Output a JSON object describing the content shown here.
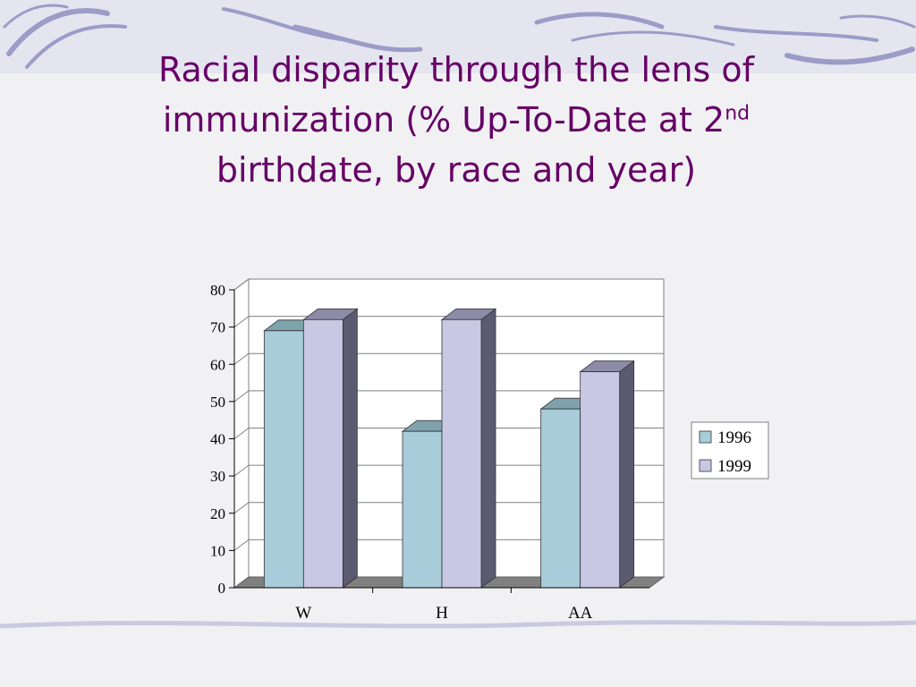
{
  "slide": {
    "title_line1": "Racial disparity through the lens of",
    "title_line2": "immunization (% Up-To-Date at 2",
    "title_sup": "nd",
    "title_line3": "birthdate, by race and year)"
  },
  "colors": {
    "title": "#660066",
    "series_1996": "#a8ccd9",
    "series_1999": "#c9c8e4",
    "decor": "#9c9cc8"
  },
  "chart_data": {
    "type": "bar",
    "title": "",
    "xlabel": "",
    "ylabel": "",
    "categories": [
      "W",
      "H",
      "AA"
    ],
    "series": [
      {
        "name": "1996",
        "values": [
          69,
          42,
          48
        ]
      },
      {
        "name": "1999",
        "values": [
          72,
          72,
          58
        ]
      }
    ],
    "ylim": [
      0,
      80
    ],
    "yticks": [
      0,
      10,
      20,
      30,
      40,
      50,
      60,
      70,
      80
    ],
    "grid": true,
    "legend": "right",
    "style": "3d-clustered-column"
  }
}
